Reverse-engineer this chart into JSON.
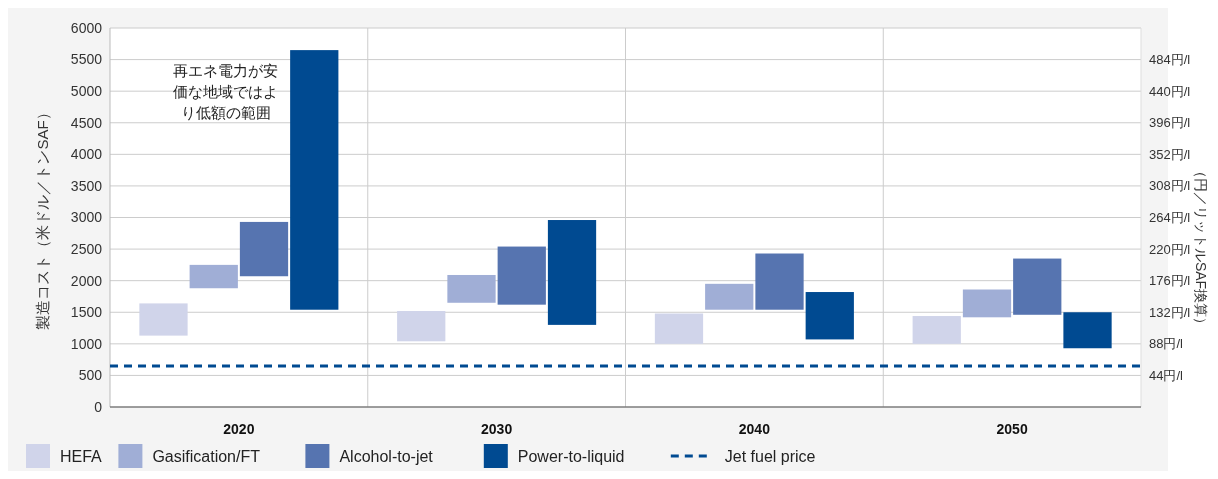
{
  "chart_data": {
    "type": "bar",
    "categories": [
      "2020",
      "2030",
      "2040",
      "2050"
    ],
    "ylabel": "製造コスト（米ドル／トンSAF）",
    "y2label": "（円／リットルSAF換算）",
    "series": [
      {
        "name": "HEFA",
        "color": "#d0d4ea",
        "base": [
          1130,
          1040,
          1000,
          1000
        ],
        "values": [
          510,
          480,
          480,
          440
        ]
      },
      {
        "name": "Gasification/FT",
        "color": "#a0aed6",
        "base": [
          1880,
          1650,
          1540,
          1420
        ],
        "values": [
          370,
          440,
          410,
          440
        ]
      },
      {
        "name": "Alcohol-to-jet",
        "color": "#5674b0",
        "base": [
          2070,
          1620,
          1540,
          1460
        ],
        "values": [
          860,
          920,
          890,
          890
        ]
      },
      {
        "name": "Power-to-liquid",
        "color": "#004a91",
        "base": [
          1540,
          1300,
          1070,
          930
        ],
        "values": [
          4110,
          1660,
          750,
          570
        ]
      }
    ],
    "ref_lines": [
      {
        "axis": "y",
        "value": 650,
        "label": "Jet fuel price",
        "color": "#004a91",
        "line_style": "dashed"
      }
    ],
    "annotations": [
      "再エネ電力が安価な地域ではより低額の範囲"
    ],
    "ylim": [
      0,
      6000
    ],
    "yticks": [
      0,
      500,
      1000,
      1500,
      2000,
      2500,
      3000,
      3500,
      4000,
      4500,
      5000,
      5500,
      6000
    ],
    "y2lim": [
      0,
      528
    ],
    "y2ticks": [
      {
        "value": 44,
        "label": "44円/l"
      },
      {
        "value": 88,
        "label": "88円/l"
      },
      {
        "value": 132,
        "label": "132円/l"
      },
      {
        "value": 176,
        "label": "176円/l"
      },
      {
        "value": 220,
        "label": "220円/l"
      },
      {
        "value": 264,
        "label": "264円/l"
      },
      {
        "value": 308,
        "label": "308円/l"
      },
      {
        "value": 352,
        "label": "352円/l"
      },
      {
        "value": 396,
        "label": "396円/l"
      },
      {
        "value": 440,
        "label": "440円/l"
      },
      {
        "value": 484,
        "label": "484円/l"
      }
    ],
    "grid": "y",
    "legend": "bottom"
  }
}
